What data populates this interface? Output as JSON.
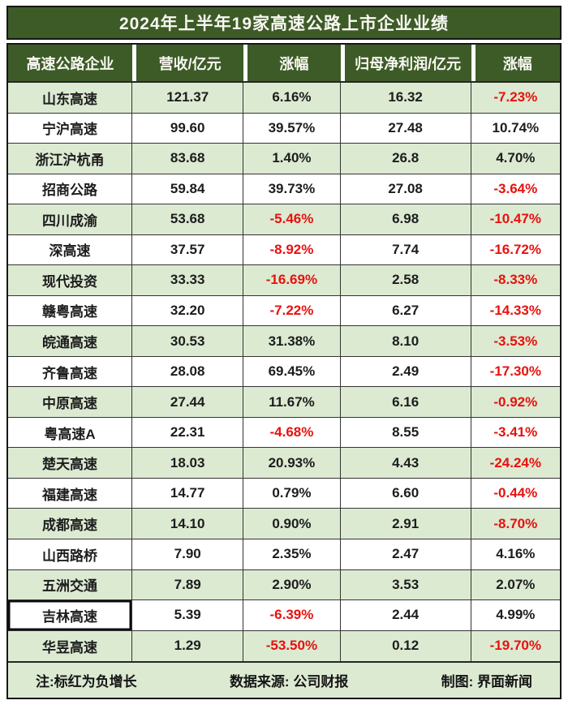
{
  "title": "2024年上半年19家高速公路上市企业业绩",
  "chart_data": {
    "type": "table",
    "title": "2024年上半年19家高速公路上市企业业绩",
    "columns": [
      "高速公路企业",
      "营收/亿元",
      "涨幅",
      "归母净利润/亿元",
      "涨幅"
    ],
    "rows": [
      [
        "山东高速",
        "121.37",
        "6.16%",
        "16.32",
        "-7.23%"
      ],
      [
        "宁沪高速",
        "99.60",
        "39.57%",
        "27.48",
        "10.74%"
      ],
      [
        "浙江沪杭甬",
        "83.68",
        "1.40%",
        "26.8",
        "4.70%"
      ],
      [
        "招商公路",
        "59.84",
        "39.73%",
        "27.08",
        "-3.64%"
      ],
      [
        "四川成渝",
        "53.68",
        "-5.46%",
        "6.98",
        "-10.47%"
      ],
      [
        "深高速",
        "37.57",
        "-8.92%",
        "7.74",
        "-16.72%"
      ],
      [
        "现代投资",
        "33.33",
        "-16.69%",
        "2.58",
        "-8.33%"
      ],
      [
        "赣粤高速",
        "32.20",
        "-7.22%",
        "6.27",
        "-14.33%"
      ],
      [
        "皖通高速",
        "30.53",
        "31.38%",
        "8.10",
        "-3.53%"
      ],
      [
        "齐鲁高速",
        "28.08",
        "69.45%",
        "2.49",
        "-17.30%"
      ],
      [
        "中原高速",
        "27.44",
        "11.67%",
        "6.16",
        "-0.92%"
      ],
      [
        "粤高速A",
        "22.31",
        "-4.68%",
        "8.55",
        "-3.41%"
      ],
      [
        "楚天高速",
        "18.03",
        "20.93%",
        "4.43",
        "-24.24%"
      ],
      [
        "福建高速",
        "14.77",
        "0.79%",
        "6.60",
        "-0.44%"
      ],
      [
        "成都高速",
        "14.10",
        "0.90%",
        "2.91",
        "-8.70%"
      ],
      [
        "山西路桥",
        "7.90",
        "2.35%",
        "2.47",
        "4.16%"
      ],
      [
        "五洲交通",
        "7.89",
        "2.90%",
        "3.53",
        "2.07%"
      ],
      [
        "吉林高速",
        "5.39",
        "-6.39%",
        "2.44",
        "4.99%"
      ],
      [
        "华昱高速",
        "1.29",
        "-53.50%",
        "0.12",
        "-19.70%"
      ]
    ],
    "legend_note": "标红为负增长"
  },
  "footer": {
    "note": "注:标红为负增长",
    "source": "数据来源: 公司财报",
    "credit": "制图: 界面新闻"
  },
  "colors": {
    "header_green": "#3d5b27",
    "row_green": "#dcead2",
    "negative_red": "#e8110e",
    "text_black": "#1d1d1d"
  }
}
